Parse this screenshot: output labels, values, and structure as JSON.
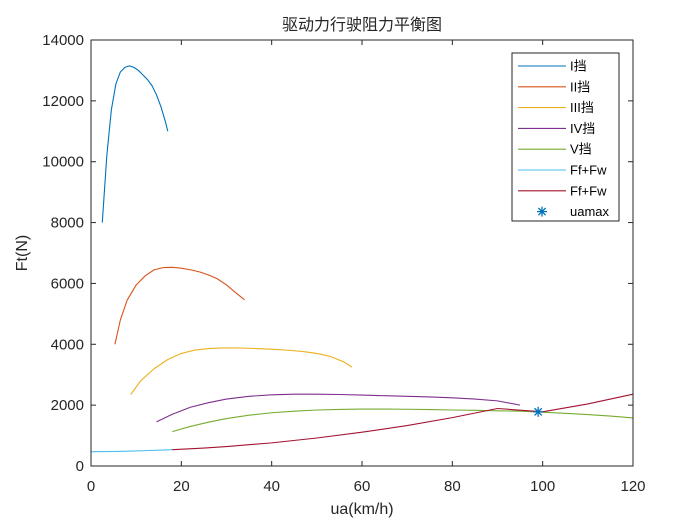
{
  "chart_data": {
    "type": "line",
    "title": "驱动力行驶阻力平衡图",
    "xlabel": "ua(km/h)",
    "ylabel": "Ft(N)",
    "xlim": [
      0,
      120
    ],
    "ylim": [
      0,
      14000
    ],
    "xticks": [
      0,
      20,
      40,
      60,
      80,
      100,
      120
    ],
    "yticks": [
      0,
      2000,
      4000,
      6000,
      8000,
      10000,
      12000,
      14000
    ],
    "grid": false,
    "legend_position": "top-right",
    "series": [
      {
        "name": "I挡",
        "color": "#0072BD",
        "x": [
          2.5,
          3.5,
          4.5,
          5.5,
          6.5,
          7.5,
          8.5,
          9.5,
          10.5,
          11.5,
          12.5,
          13.5,
          14.5,
          15.5,
          16.5,
          17.0
        ],
        "y": [
          8000,
          10200,
          11700,
          12550,
          12950,
          13100,
          13150,
          13100,
          13000,
          12850,
          12700,
          12500,
          12200,
          11800,
          11300,
          11000
        ]
      },
      {
        "name": "II挡",
        "color": "#D95319",
        "x": [
          5.3,
          6.5,
          8,
          10,
          12,
          14,
          16,
          18,
          20,
          22,
          24,
          26,
          28,
          30,
          32,
          34
        ],
        "y": [
          4000,
          4800,
          5450,
          5950,
          6250,
          6450,
          6520,
          6530,
          6500,
          6450,
          6380,
          6280,
          6150,
          5950,
          5700,
          5460
        ]
      },
      {
        "name": "III挡",
        "color": "#EDB120",
        "x": [
          8.8,
          11,
          14,
          17,
          20,
          23,
          26,
          29,
          32,
          35,
          38,
          41,
          44,
          47,
          50,
          53,
          56,
          57.8
        ],
        "y": [
          2350,
          2800,
          3200,
          3500,
          3700,
          3810,
          3860,
          3880,
          3880,
          3870,
          3850,
          3830,
          3800,
          3760,
          3700,
          3600,
          3420,
          3250
        ]
      },
      {
        "name": "IV挡",
        "color": "#7E2F8E",
        "x": [
          14.5,
          18,
          22,
          26,
          30,
          35,
          40,
          45,
          50,
          55,
          60,
          65,
          70,
          75,
          80,
          85,
          90,
          95
        ],
        "y": [
          1450,
          1700,
          1930,
          2080,
          2200,
          2290,
          2340,
          2360,
          2360,
          2350,
          2330,
          2310,
          2290,
          2270,
          2240,
          2200,
          2140,
          2000
        ]
      },
      {
        "name": "V挡",
        "color": "#77AC30",
        "x": [
          18,
          22,
          26,
          30,
          35,
          40,
          45,
          50,
          55,
          60,
          65,
          70,
          75,
          80,
          85,
          90,
          95,
          100,
          105,
          110,
          115,
          120
        ],
        "y": [
          1130,
          1300,
          1440,
          1560,
          1670,
          1750,
          1800,
          1840,
          1860,
          1870,
          1870,
          1865,
          1855,
          1840,
          1830,
          1815,
          1800,
          1770,
          1730,
          1690,
          1640,
          1580
        ]
      },
      {
        "name": "Ff+Fw",
        "color": "#4DBEEE",
        "x": [
          0,
          3,
          6,
          9,
          12,
          15,
          18
        ],
        "y": [
          470,
          475,
          480,
          490,
          505,
          520,
          535
        ]
      },
      {
        "name": "Ff+Fw",
        "color": "#A2142F",
        "x": [
          18,
          25,
          30,
          40,
          50,
          60,
          70,
          80,
          90,
          100,
          110,
          120
        ],
        "y": [
          535,
          590,
          640,
          760,
          920,
          1110,
          1330,
          1590,
          1890,
          1780,
          2040,
          2360
        ]
      },
      {
        "name": "uamax",
        "color": "#0072BD",
        "marker": "*",
        "x": [
          99
        ],
        "y": [
          1780
        ]
      }
    ]
  }
}
